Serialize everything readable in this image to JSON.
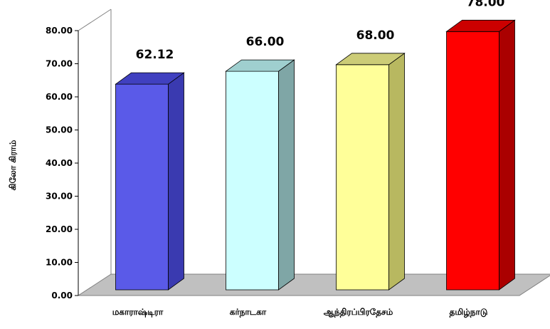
{
  "chart_data": {
    "type": "bar",
    "style": "3d-column",
    "categories": [
      "மகாராஷ்டிரா",
      "கர்நாடகா",
      "ஆந்திரப்பிரதேசம்",
      "தமிழ்நாடு"
    ],
    "values": [
      62.12,
      66.0,
      68.0,
      78.0
    ],
    "data_labels": [
      "62.12",
      "66.00",
      "68.00",
      "78.00"
    ],
    "ylabel": "கிலோ கிராம்",
    "ylim": [
      0,
      80
    ],
    "yticks": [
      "0.00",
      "10.00",
      "20.00",
      "30.00",
      "40.00",
      "50.00",
      "60.00",
      "70.00",
      "80.00"
    ],
    "grid": false,
    "legend": "none",
    "colors": {
      "bars": [
        "#5a5ae8",
        "#ccffff",
        "#ffff99",
        "#ff0000"
      ],
      "bar_sides": [
        "#3a3ab0",
        "#7fa6a6",
        "#b8b860",
        "#aa0000"
      ],
      "bar_tops": [
        "#4040c0",
        "#9fcfcf",
        "#cccc77",
        "#cc0000"
      ],
      "floor": "#c0c0c0",
      "walls": "#ffffff"
    }
  }
}
